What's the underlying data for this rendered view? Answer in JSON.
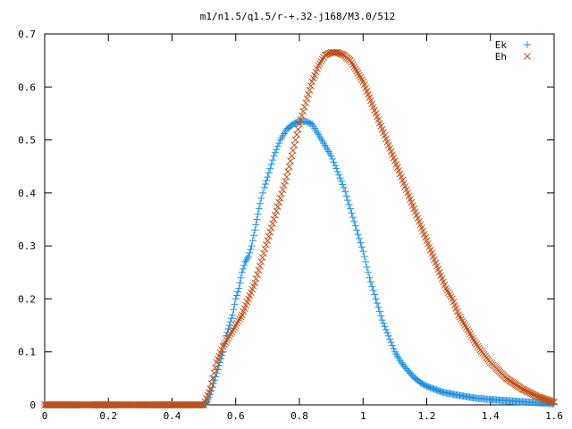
{
  "chart_data": {
    "type": "scatter",
    "title": "m1/n1.5/q1.5/r-+.32-j168/M3.0/512",
    "xlabel": "",
    "ylabel": "",
    "xlim": [
      0,
      1.6
    ],
    "ylim": [
      0,
      0.7
    ],
    "x_ticks": [
      "0",
      "0.2",
      "0.4",
      "0.6",
      "0.8",
      "1",
      "1.2",
      "1.4",
      "1.6"
    ],
    "y_ticks": [
      "0",
      "0.1",
      "0.2",
      "0.3",
      "0.4",
      "0.5",
      "0.6",
      "0.7"
    ],
    "grid": false,
    "legend_position": "top-right",
    "series": [
      {
        "name": "Ek",
        "marker": "plus",
        "color": "#1f8fe0",
        "x": [
          0,
          0.05,
          0.1,
          0.15,
          0.2,
          0.25,
          0.3,
          0.35,
          0.4,
          0.45,
          0.5,
          0.51,
          0.52,
          0.53,
          0.54,
          0.55,
          0.56,
          0.57,
          0.58,
          0.59,
          0.6,
          0.61,
          0.62,
          0.63,
          0.64,
          0.65,
          0.66,
          0.67,
          0.68,
          0.69,
          0.7,
          0.72,
          0.74,
          0.76,
          0.78,
          0.8,
          0.82,
          0.84,
          0.86,
          0.88,
          0.9,
          0.92,
          0.94,
          0.96,
          0.98,
          1.0,
          1.02,
          1.04,
          1.06,
          1.08,
          1.1,
          1.12,
          1.14,
          1.16,
          1.18,
          1.2,
          1.25,
          1.3,
          1.35,
          1.4,
          1.45,
          1.5,
          1.55,
          1.6
        ],
        "y": [
          0,
          0,
          0,
          0,
          0,
          0,
          0,
          0,
          0,
          0,
          0,
          0.005,
          0.02,
          0.04,
          0.06,
          0.08,
          0.1,
          0.13,
          0.15,
          0.17,
          0.2,
          0.22,
          0.25,
          0.27,
          0.28,
          0.3,
          0.33,
          0.36,
          0.39,
          0.41,
          0.43,
          0.47,
          0.5,
          0.52,
          0.53,
          0.535,
          0.535,
          0.53,
          0.51,
          0.49,
          0.47,
          0.44,
          0.41,
          0.37,
          0.33,
          0.29,
          0.24,
          0.2,
          0.16,
          0.13,
          0.1,
          0.08,
          0.065,
          0.052,
          0.042,
          0.035,
          0.024,
          0.018,
          0.013,
          0.01,
          0.008,
          0.006,
          0.004,
          0.002
        ]
      },
      {
        "name": "Eh",
        "marker": "cross",
        "color": "#c0501a",
        "x": [
          0,
          0.05,
          0.1,
          0.15,
          0.2,
          0.25,
          0.3,
          0.35,
          0.4,
          0.45,
          0.5,
          0.52,
          0.54,
          0.56,
          0.58,
          0.6,
          0.62,
          0.64,
          0.66,
          0.68,
          0.7,
          0.72,
          0.74,
          0.76,
          0.78,
          0.8,
          0.82,
          0.84,
          0.86,
          0.88,
          0.9,
          0.92,
          0.94,
          0.96,
          0.98,
          1.0,
          1.02,
          1.04,
          1.06,
          1.08,
          1.1,
          1.12,
          1.14,
          1.16,
          1.18,
          1.2,
          1.22,
          1.24,
          1.26,
          1.28,
          1.3,
          1.32,
          1.34,
          1.36,
          1.38,
          1.4,
          1.45,
          1.5,
          1.55,
          1.6
        ],
        "y": [
          0,
          0,
          0,
          0,
          0,
          0,
          0,
          0,
          0,
          0,
          0,
          0.03,
          0.08,
          0.11,
          0.13,
          0.15,
          0.17,
          0.2,
          0.23,
          0.27,
          0.31,
          0.35,
          0.39,
          0.43,
          0.48,
          0.53,
          0.57,
          0.61,
          0.64,
          0.66,
          0.665,
          0.665,
          0.66,
          0.65,
          0.63,
          0.61,
          0.58,
          0.55,
          0.52,
          0.49,
          0.46,
          0.43,
          0.4,
          0.37,
          0.34,
          0.31,
          0.28,
          0.25,
          0.22,
          0.2,
          0.17,
          0.15,
          0.13,
          0.11,
          0.095,
          0.08,
          0.05,
          0.03,
          0.015,
          0.005
        ]
      }
    ]
  }
}
